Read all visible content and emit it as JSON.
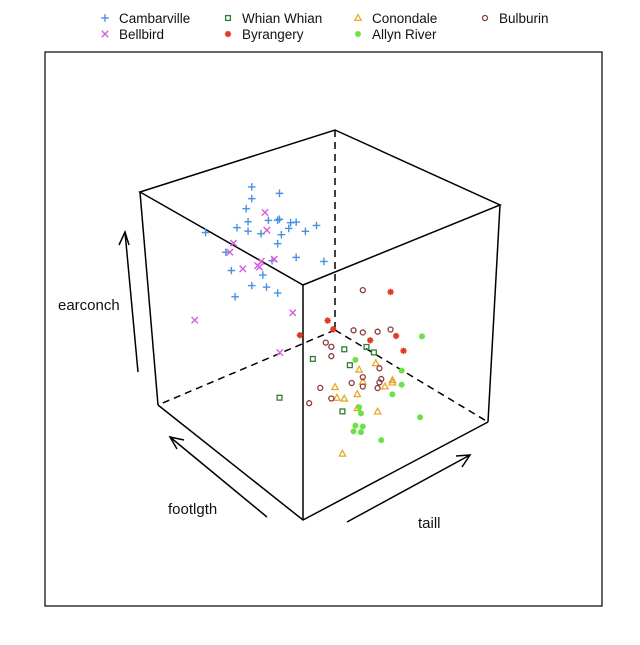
{
  "chart_data": {
    "type": "scatter",
    "subtype": "3d-cloud",
    "axes": {
      "x": "footlgth",
      "y": "taill",
      "z": "earconch"
    },
    "axis_range_note": "values normalized 0-1 within each axis range",
    "xlim": [
      0,
      1
    ],
    "ylim": [
      0,
      1
    ],
    "zlim": [
      0,
      1
    ],
    "grid": false,
    "legend_position": "top",
    "series": [
      {
        "name": "Cambarville",
        "color": "#4a90e2",
        "symbol": "plus",
        "points": [
          [
            0.8,
            0.35,
            0.88
          ],
          [
            0.8,
            0.5,
            0.79
          ],
          [
            0.8,
            0.35,
            0.83
          ],
          [
            0.8,
            0.32,
            0.8
          ],
          [
            0.8,
            0.33,
            0.74
          ],
          [
            0.8,
            0.44,
            0.7
          ],
          [
            0.8,
            0.49,
            0.68
          ],
          [
            0.8,
            0.5,
            0.68
          ],
          [
            0.8,
            0.56,
            0.64
          ],
          [
            0.8,
            0.59,
            0.63
          ],
          [
            0.8,
            0.7,
            0.57
          ],
          [
            0.8,
            0.27,
            0.74
          ],
          [
            0.8,
            0.33,
            0.7
          ],
          [
            0.8,
            0.4,
            0.66
          ],
          [
            0.8,
            0.55,
            0.62
          ],
          [
            0.8,
            0.51,
            0.61
          ],
          [
            0.8,
            0.64,
            0.57
          ],
          [
            0.8,
            0.1,
            0.79
          ],
          [
            0.8,
            0.49,
            0.58
          ],
          [
            0.8,
            0.21,
            0.66
          ],
          [
            0.8,
            0.59,
            0.48
          ],
          [
            0.8,
            0.74,
            0.4
          ],
          [
            0.8,
            0.46,
            0.52
          ],
          [
            0.8,
            0.24,
            0.57
          ],
          [
            0.8,
            0.41,
            0.48
          ],
          [
            0.8,
            0.35,
            0.46
          ],
          [
            0.8,
            0.43,
            0.42
          ],
          [
            0.8,
            0.49,
            0.37
          ],
          [
            0.8,
            0.26,
            0.45
          ]
        ]
      },
      {
        "name": "Bellbird",
        "color": "#d45ee0",
        "symbol": "cross",
        "points": [
          [
            0.9,
            0.5,
            0.66
          ],
          [
            0.9,
            0.33,
            0.6
          ],
          [
            0.9,
            0.31,
            0.57
          ],
          [
            0.9,
            0.51,
            0.58
          ],
          [
            0.9,
            0.48,
            0.46
          ],
          [
            0.9,
            0.55,
            0.44
          ],
          [
            0.9,
            0.38,
            0.47
          ],
          [
            0.9,
            0.46,
            0.45
          ],
          [
            0.9,
            0.47,
            0.44
          ],
          [
            0.9,
            0.65,
            0.17
          ],
          [
            0.9,
            0.12,
            0.36
          ],
          [
            0.9,
            0.58,
            0.03
          ]
        ]
      },
      {
        "name": "Whian Whian",
        "color": "#2e7d32",
        "symbol": "square",
        "points": [
          [
            0.2,
            0.38,
            0.47
          ],
          [
            0.2,
            0.5,
            0.43
          ],
          [
            0.2,
            0.54,
            0.39
          ],
          [
            0.2,
            0.21,
            0.5
          ],
          [
            0.2,
            0.41,
            0.39
          ],
          [
            0.2,
            0.03,
            0.41
          ],
          [
            0.2,
            0.37,
            0.21
          ]
        ]
      },
      {
        "name": "Byrangery",
        "color": "#e0381f",
        "symbol": "asterisk",
        "points": [
          [
            0.2,
            0.63,
            0.61
          ],
          [
            0.2,
            0.29,
            0.63
          ],
          [
            0.2,
            0.32,
            0.58
          ],
          [
            0.2,
            0.14,
            0.63
          ],
          [
            0.2,
            0.66,
            0.41
          ],
          [
            0.2,
            0.52,
            0.45
          ],
          [
            0.2,
            0.7,
            0.33
          ]
        ]
      },
      {
        "name": "Conondale",
        "color": "#e9a82a",
        "symbol": "triangle",
        "points": [
          [
            0.2,
            0.55,
            0.34
          ],
          [
            0.2,
            0.46,
            0.35
          ],
          [
            0.2,
            0.48,
            0.29
          ],
          [
            0.2,
            0.64,
            0.23
          ],
          [
            0.2,
            0.64,
            0.22
          ],
          [
            0.2,
            0.6,
            0.22
          ],
          [
            0.2,
            0.33,
            0.33
          ],
          [
            0.2,
            0.45,
            0.25
          ],
          [
            0.2,
            0.34,
            0.28
          ],
          [
            0.2,
            0.38,
            0.26
          ],
          [
            0.2,
            0.45,
            0.19
          ],
          [
            0.2,
            0.56,
            0.13
          ],
          [
            0.2,
            0.37,
            0.03
          ]
        ]
      },
      {
        "name": "Allyn River",
        "color": "#6ee04a",
        "symbol": "dot",
        "points": [
          [
            0.2,
            0.8,
            0.35
          ],
          [
            0.2,
            0.44,
            0.4
          ],
          [
            0.2,
            0.69,
            0.25
          ],
          [
            0.2,
            0.69,
            0.19
          ],
          [
            0.2,
            0.64,
            0.17
          ],
          [
            0.2,
            0.46,
            0.19
          ],
          [
            0.2,
            0.47,
            0.16
          ],
          [
            0.2,
            0.79,
            0.01
          ],
          [
            0.2,
            0.44,
            0.12
          ],
          [
            0.2,
            0.48,
            0.1
          ],
          [
            0.2,
            0.43,
            0.1
          ],
          [
            0.2,
            0.47,
            0.08
          ],
          [
            0.2,
            0.58,
            0.0
          ]
        ]
      },
      {
        "name": "Bulburin",
        "color": "#8e3b3b",
        "symbol": "circle",
        "points": [
          [
            0.2,
            0.48,
            0.68
          ],
          [
            0.2,
            0.43,
            0.53
          ],
          [
            0.2,
            0.48,
            0.5
          ],
          [
            0.2,
            0.56,
            0.47
          ],
          [
            0.2,
            0.63,
            0.45
          ],
          [
            0.2,
            0.28,
            0.54
          ],
          [
            0.2,
            0.31,
            0.51
          ],
          [
            0.2,
            0.31,
            0.47
          ],
          [
            0.2,
            0.57,
            0.31
          ],
          [
            0.2,
            0.48,
            0.31
          ],
          [
            0.2,
            0.58,
            0.26
          ],
          [
            0.2,
            0.57,
            0.25
          ],
          [
            0.2,
            0.42,
            0.31
          ],
          [
            0.2,
            0.48,
            0.27
          ],
          [
            0.2,
            0.56,
            0.23
          ],
          [
            0.2,
            0.25,
            0.36
          ],
          [
            0.2,
            0.31,
            0.29
          ],
          [
            0.2,
            0.19,
            0.32
          ]
        ]
      }
    ],
    "legend": [
      {
        "label": "Cambarville"
      },
      {
        "label": "Whian Whian"
      },
      {
        "label": "Conondale"
      },
      {
        "label": "Bulburin"
      },
      {
        "label": "Bellbird"
      },
      {
        "label": "Byrangery"
      },
      {
        "label": "Allyn River"
      }
    ],
    "axis_labels": {
      "footlgth": "footlgth",
      "taill": "taill",
      "earconch": "earconch"
    }
  }
}
